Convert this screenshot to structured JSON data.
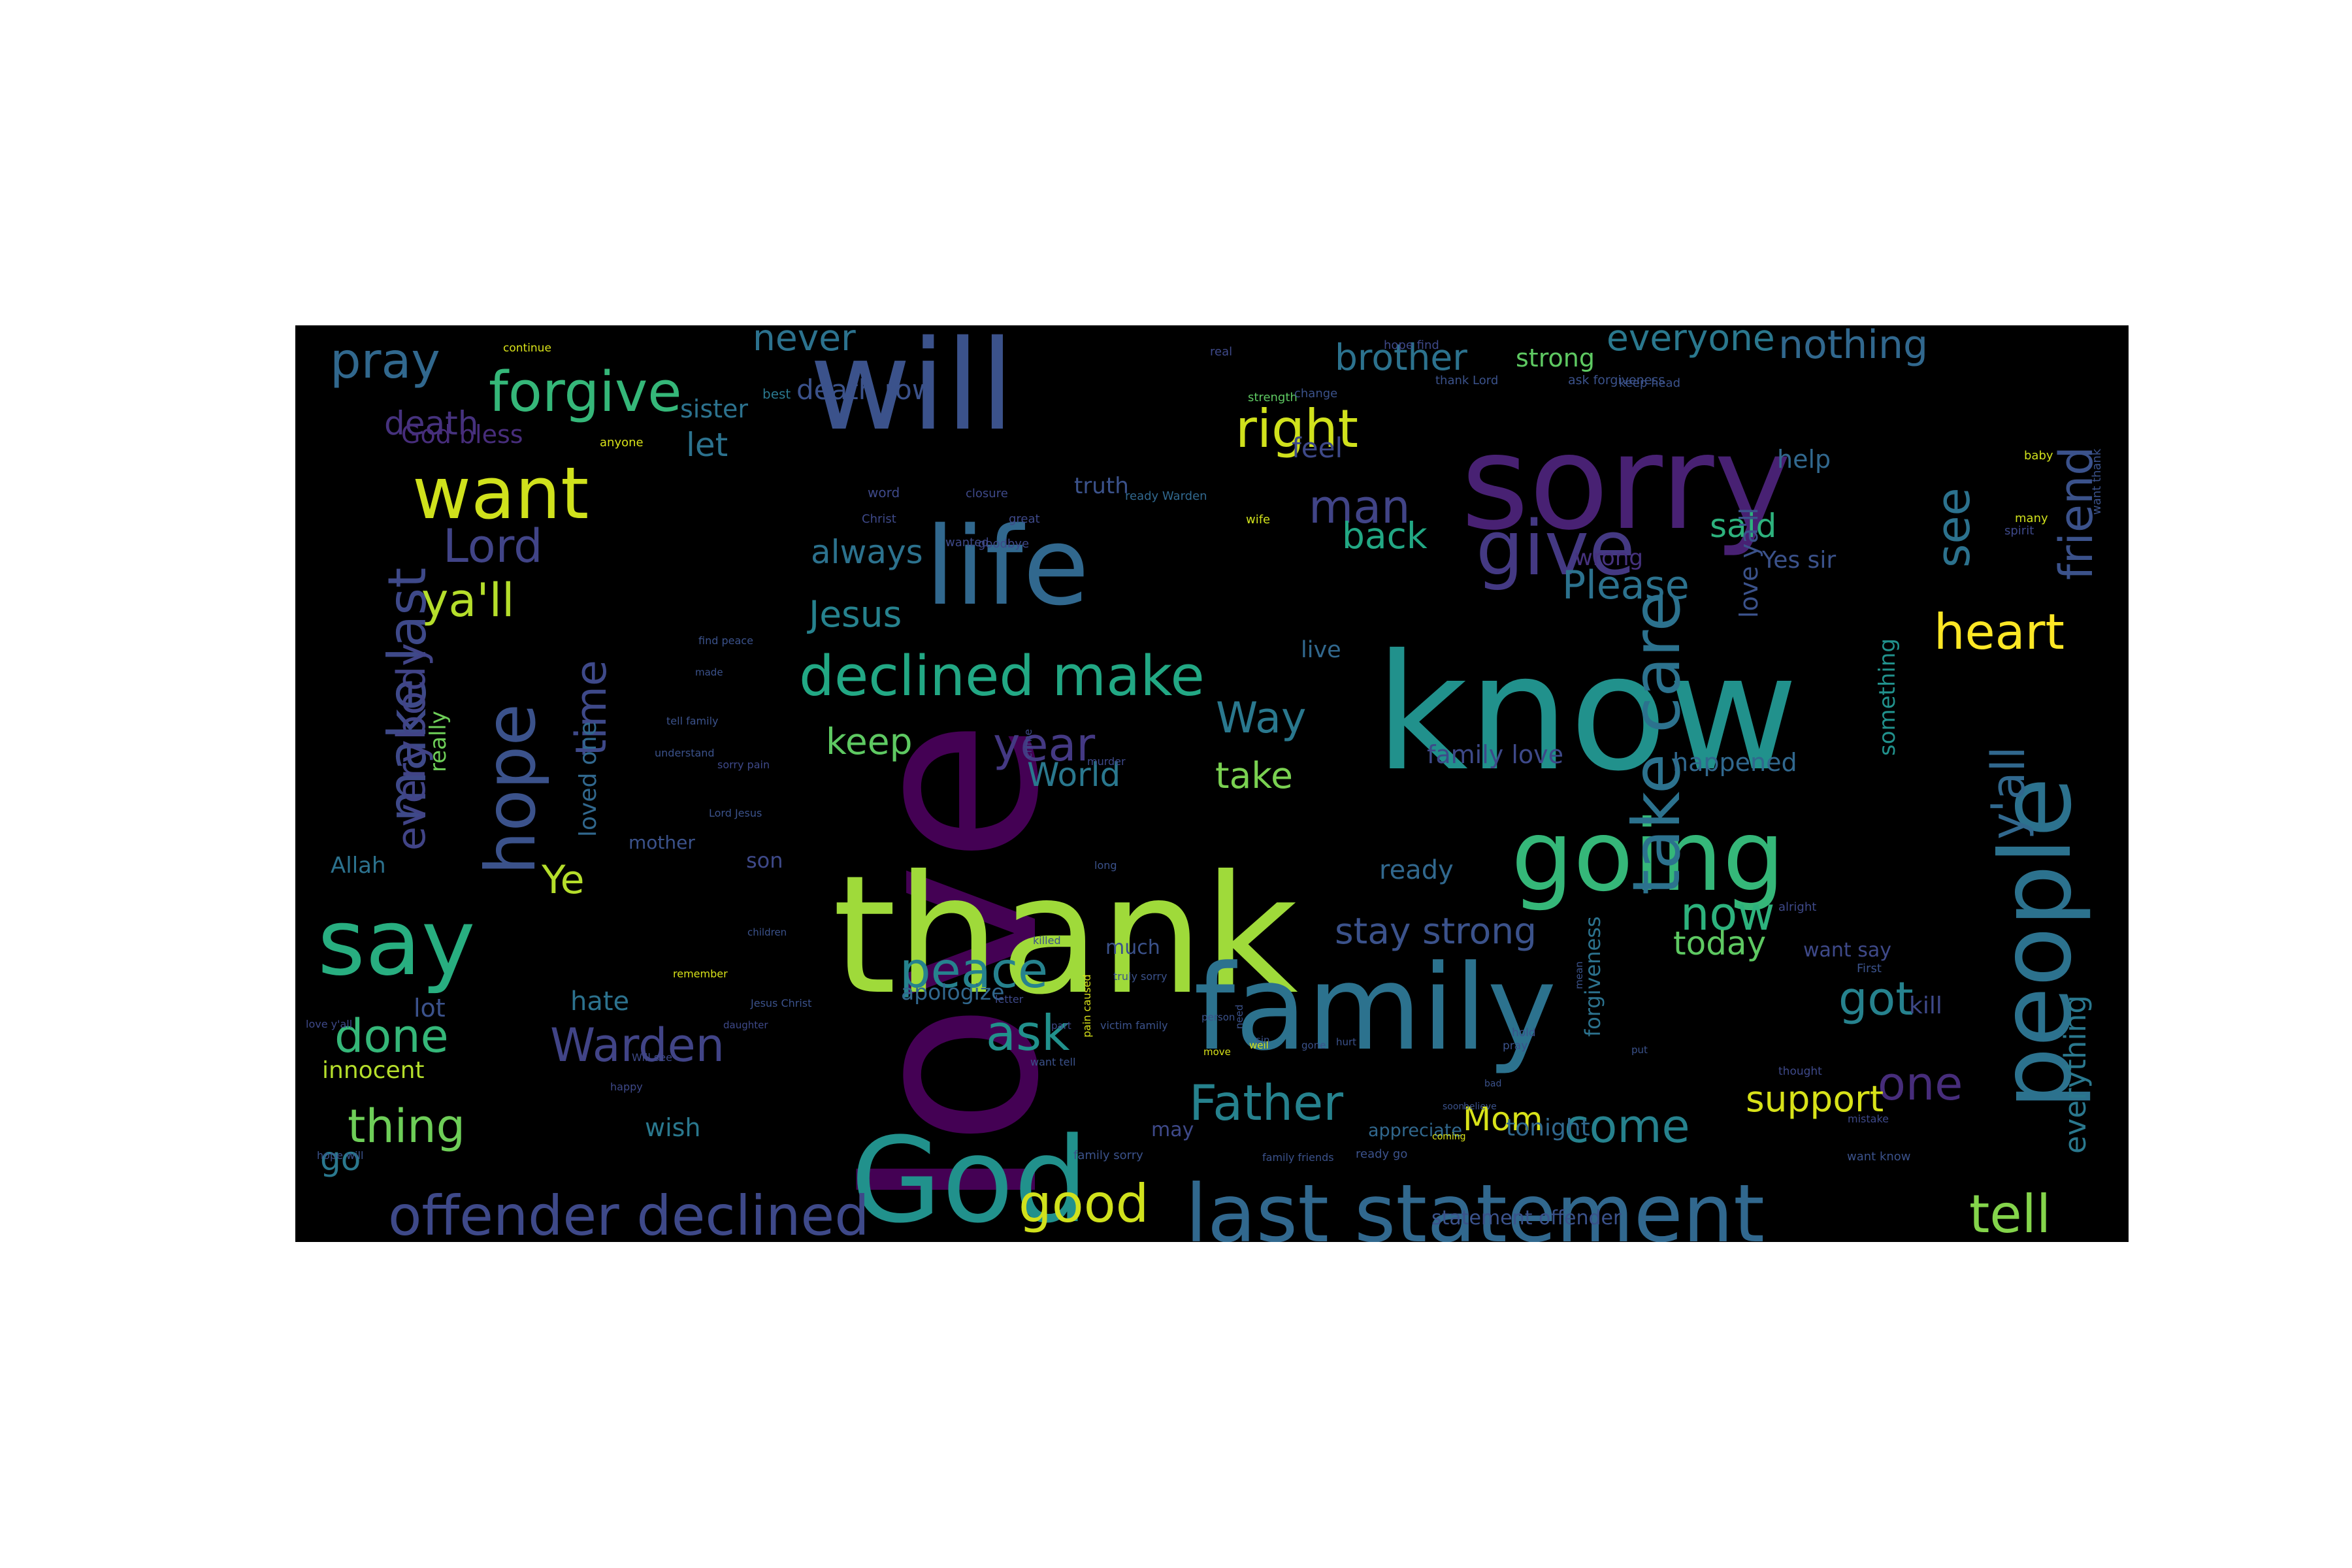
{
  "background_color": "#000000",
  "colormap": "viridis",
  "words": [
    {
      "text": "love",
      "color": "#440154"
    },
    {
      "text": "thank",
      "color": "#9fda3a"
    },
    {
      "text": "know",
      "color": "#21918c"
    },
    {
      "text": "sorry",
      "color": "#482173"
    },
    {
      "text": "will",
      "color": "#3b528b"
    },
    {
      "text": "family",
      "color": "#2c728e"
    },
    {
      "text": "God",
      "color": "#21918c"
    },
    {
      "text": "life",
      "color": "#31688e"
    },
    {
      "text": "going",
      "color": "#35b779"
    },
    {
      "text": "people",
      "color": "#2c728e"
    },
    {
      "text": "say",
      "color": "#28ae80"
    },
    {
      "text": "last statement",
      "color": "#31688e"
    },
    {
      "text": "want",
      "color": "#d0e11c"
    },
    {
      "text": "give",
      "color": "#443983"
    },
    {
      "text": "offender declined",
      "color": "#3e4989"
    },
    {
      "text": "forgive",
      "color": "#35b779"
    },
    {
      "text": "declined make",
      "color": "#22a884"
    },
    {
      "text": "hope",
      "color": "#3b528b"
    },
    {
      "text": "make last",
      "color": "#3e4989"
    },
    {
      "text": "pray",
      "color": "#31688e"
    },
    {
      "text": "right",
      "color": "#d0e11c"
    },
    {
      "text": "heart",
      "color": "#fde725"
    },
    {
      "text": "good",
      "color": "#d0e11c"
    },
    {
      "text": "tell",
      "color": "#84d44b"
    },
    {
      "text": "peace",
      "color": "#26828e"
    },
    {
      "text": "Father",
      "color": "#26828e"
    },
    {
      "text": "Warden",
      "color": "#414487"
    },
    {
      "text": "thing",
      "color": "#6ece58"
    },
    {
      "text": "done",
      "color": "#35b779"
    },
    {
      "text": "man",
      "color": "#414487"
    },
    {
      "text": "Lord",
      "color": "#414487"
    },
    {
      "text": "ya'll",
      "color": "#b5de2b"
    },
    {
      "text": "now",
      "color": "#2db27d"
    },
    {
      "text": "ask",
      "color": "#21918c"
    },
    {
      "text": "come",
      "color": "#26828e"
    },
    {
      "text": "got",
      "color": "#26828e"
    },
    {
      "text": "friend",
      "color": "#3b528b"
    },
    {
      "text": "see",
      "color": "#2c728e"
    },
    {
      "text": "y'all",
      "color": "#31688e"
    },
    {
      "text": "one",
      "color": "#472d7b"
    },
    {
      "text": "time",
      "color": "#3e4989"
    },
    {
      "text": "Way",
      "color": "#2a788e"
    },
    {
      "text": "year",
      "color": "#443983"
    },
    {
      "text": "everybody",
      "color": "#414487"
    },
    {
      "text": "Please",
      "color": "#2c728e"
    },
    {
      "text": "support",
      "color": "#d8e219"
    },
    {
      "text": "nothing",
      "color": "#31688e"
    },
    {
      "text": "everyone",
      "color": "#2a788e"
    },
    {
      "text": "brother",
      "color": "#2c728e"
    },
    {
      "text": "never",
      "color": "#2c728e"
    },
    {
      "text": "Jesus",
      "color": "#26828e"
    },
    {
      "text": "always",
      "color": "#2c728e"
    },
    {
      "text": "keep",
      "color": "#5ec962"
    },
    {
      "text": "take",
      "color": "#7ad151"
    },
    {
      "text": "take care",
      "color": "#2c728e"
    },
    {
      "text": "stay strong",
      "color": "#3b528b"
    },
    {
      "text": "today",
      "color": "#5ec962"
    },
    {
      "text": "Mom",
      "color": "#d8e219"
    },
    {
      "text": "let",
      "color": "#2c728e"
    },
    {
      "text": "Ye",
      "color": "#b5de2b"
    },
    {
      "text": "death",
      "color": "#46327e"
    },
    {
      "text": "back",
      "color": "#22a884"
    },
    {
      "text": "said",
      "color": "#2db27d"
    },
    {
      "text": "World",
      "color": "#2a788e"
    },
    {
      "text": "go",
      "color": "#2a788e"
    },
    {
      "text": "everything",
      "color": "#2a788e"
    },
    {
      "text": "hate",
      "color": "#2c728e"
    },
    {
      "text": "wish",
      "color": "#2a788e"
    },
    {
      "text": "help",
      "color": "#31688e"
    },
    {
      "text": "happened",
      "color": "#31688e"
    },
    {
      "text": "family love",
      "color": "#3e4989"
    },
    {
      "text": "Yes sir",
      "color": "#3b528b"
    },
    {
      "text": "feel",
      "color": "#3e4989"
    },
    {
      "text": "God bless",
      "color": "#472d7b"
    },
    {
      "text": "sister",
      "color": "#2c728e"
    },
    {
      "text": "strong",
      "color": "#5ec962"
    },
    {
      "text": "innocent",
      "color": "#b5de2b"
    },
    {
      "text": "lot",
      "color": "#3b528b"
    },
    {
      "text": "apologize",
      "color": "#31688e"
    },
    {
      "text": "ready",
      "color": "#31688e"
    },
    {
      "text": "tonight",
      "color": "#31688e"
    },
    {
      "text": "statement offender",
      "color": "#3b528b"
    },
    {
      "text": "loved one",
      "color": "#31688e"
    },
    {
      "text": "Allah",
      "color": "#2c728e"
    },
    {
      "text": "son",
      "color": "#3e4989"
    },
    {
      "text": "really",
      "color": "#6ece58"
    },
    {
      "text": "forgiveness",
      "color": "#2c728e"
    },
    {
      "text": "mother",
      "color": "#3b528b"
    },
    {
      "text": "live",
      "color": "#31688e"
    },
    {
      "text": "wrong",
      "color": "#46327e"
    },
    {
      "text": "truth",
      "color": "#3b528b"
    },
    {
      "text": "love ya'll",
      "color": "#3b528b"
    },
    {
      "text": "something",
      "color": "#21918c"
    },
    {
      "text": "appreciate",
      "color": "#31688e"
    },
    {
      "text": "kill",
      "color": "#3e4989"
    },
    {
      "text": "want say",
      "color": "#3e4989"
    },
    {
      "text": "much",
      "color": "#3b528b"
    },
    {
      "text": "may",
      "color": "#3e4989"
    },
    {
      "text": "continue",
      "color": "#d8e219"
    },
    {
      "text": "best",
      "color": "#2a788e"
    },
    {
      "text": "death row",
      "color": "#3b528b"
    },
    {
      "text": "real",
      "color": "#3e4989"
    },
    {
      "text": "strength",
      "color": "#5ec962"
    },
    {
      "text": "change",
      "color": "#3b528b"
    },
    {
      "text": "anyone",
      "color": "#d8e219"
    },
    {
      "text": "hope find",
      "color": "#3e4989"
    },
    {
      "text": "ask forgiveness",
      "color": "#3b528b"
    },
    {
      "text": "thank Lord",
      "color": "#3b528b"
    },
    {
      "text": "keep head",
      "color": "#3b528b"
    },
    {
      "text": "baby",
      "color": "#d0e11c"
    },
    {
      "text": "want thank",
      "color": "#3b528b"
    },
    {
      "text": "spirit",
      "color": "#3e4989"
    },
    {
      "text": "many",
      "color": "#d0e11c"
    },
    {
      "text": "word",
      "color": "#3e4989"
    },
    {
      "text": "closure",
      "color": "#3e4989"
    },
    {
      "text": "ready Warden",
      "color": "#31688e"
    },
    {
      "text": "wife",
      "color": "#d0e11c"
    },
    {
      "text": "great",
      "color": "#3e4989"
    },
    {
      "text": "Christ",
      "color": "#3e4989"
    },
    {
      "text": "goodbye",
      "color": "#3e4989"
    },
    {
      "text": "wanted",
      "color": "#3e4989"
    },
    {
      "text": "find peace",
      "color": "#3b528b"
    },
    {
      "text": "made",
      "color": "#3b528b"
    },
    {
      "text": "tell family",
      "color": "#3b528b"
    },
    {
      "text": "sorry pain",
      "color": "#3e4989"
    },
    {
      "text": "understand",
      "color": "#3b528b"
    },
    {
      "text": "murder",
      "color": "#3e4989"
    },
    {
      "text": "crime",
      "color": "#3e4989"
    },
    {
      "text": "children",
      "color": "#3b528b"
    },
    {
      "text": "Lord Jesus",
      "color": "#3b528b"
    },
    {
      "text": "long",
      "color": "#3b528b"
    },
    {
      "text": "killed",
      "color": "#3b528b"
    },
    {
      "text": "truly sorry",
      "color": "#3b528b"
    },
    {
      "text": "remember",
      "color": "#d8e219"
    },
    {
      "text": "letter",
      "color": "#3e4989"
    },
    {
      "text": "Jesus Christ",
      "color": "#3b528b"
    },
    {
      "text": "part",
      "color": "#3e4989"
    },
    {
      "text": "victim family",
      "color": "#3b528b"
    },
    {
      "text": "daughter",
      "color": "#3e4989"
    },
    {
      "text": "love y'all",
      "color": "#3e4989"
    },
    {
      "text": "Will see",
      "color": "#3e4989"
    },
    {
      "text": "happy",
      "color": "#3e4989"
    },
    {
      "text": "pain caused",
      "color": "#d8e219"
    },
    {
      "text": "want tell",
      "color": "#3b528b"
    },
    {
      "text": "hope will",
      "color": "#3b528b"
    },
    {
      "text": "family sorry",
      "color": "#3b528b"
    },
    {
      "text": "family friends",
      "color": "#3b528b"
    },
    {
      "text": "ready go",
      "color": "#3b528b"
    },
    {
      "text": "coming",
      "color": "#d8e219"
    },
    {
      "text": "soon",
      "color": "#3b528b"
    },
    {
      "text": "believe",
      "color": "#3b528b"
    },
    {
      "text": "bad",
      "color": "#3b528b"
    },
    {
      "text": "thought",
      "color": "#3e4989"
    },
    {
      "text": "alright",
      "color": "#3e4989"
    },
    {
      "text": "First",
      "color": "#3b528b"
    },
    {
      "text": "mistake",
      "color": "#3e4989"
    },
    {
      "text": "want know",
      "color": "#3b528b"
    },
    {
      "text": "pray",
      "color": "#3b528b"
    },
    {
      "text": "hold",
      "color": "#3b528b"
    },
    {
      "text": "mean",
      "color": "#3b528b"
    },
    {
      "text": "well",
      "color": "#d8e219"
    },
    {
      "text": "need",
      "color": "#3b528b"
    },
    {
      "text": "person",
      "color": "#3b528b"
    },
    {
      "text": "move",
      "color": "#d8e219"
    },
    {
      "text": "sin",
      "color": "#3b528b"
    },
    {
      "text": "gone",
      "color": "#3b528b"
    },
    {
      "text": "hurt",
      "color": "#3b528b"
    },
    {
      "text": "put",
      "color": "#3b528b"
    },
    {
      "text": "Mr",
      "color": "#3b528b"
    },
    {
      "text": "die",
      "color": "#3b528b"
    },
    {
      "text": "Ms",
      "color": "#3b528b"
    },
    {
      "text": "end",
      "color": "#d8e219"
    }
  ]
}
